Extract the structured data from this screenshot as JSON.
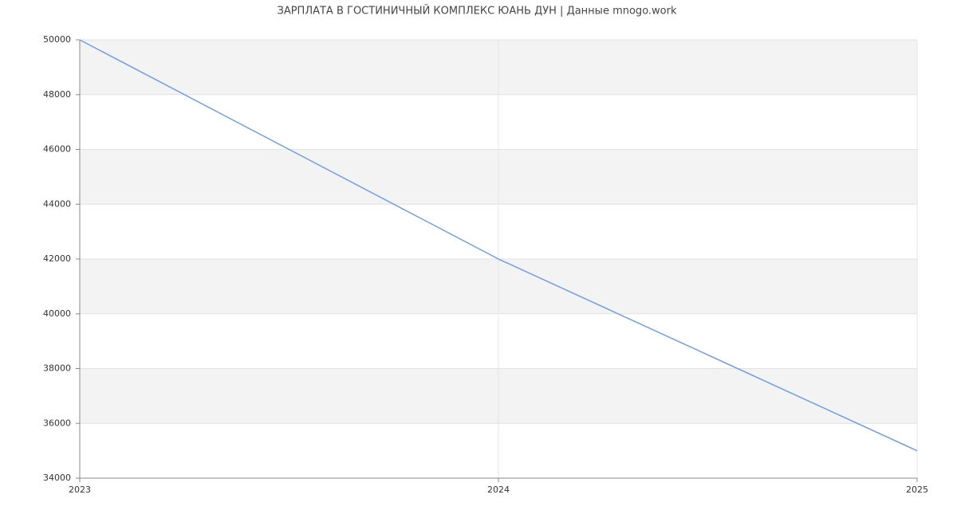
{
  "chart_data": {
    "type": "line",
    "title": "ЗАРПЛАТА В ГОСТИНИЧНЫЙ КОМПЛЕКС ЮАНЬ ДУН | Данные mnogo.work",
    "x": [
      2023,
      2024,
      2025
    ],
    "values": [
      50000,
      42000,
      35000
    ],
    "color": "#6f9de8",
    "xlim": [
      2023,
      2025
    ],
    "xticks": [
      2023,
      2024,
      2025
    ],
    "ylim": [
      34000,
      50000
    ],
    "yticks": [
      34000,
      36000,
      38000,
      40000,
      42000,
      44000,
      46000,
      48000,
      50000
    ],
    "grid": true
  }
}
